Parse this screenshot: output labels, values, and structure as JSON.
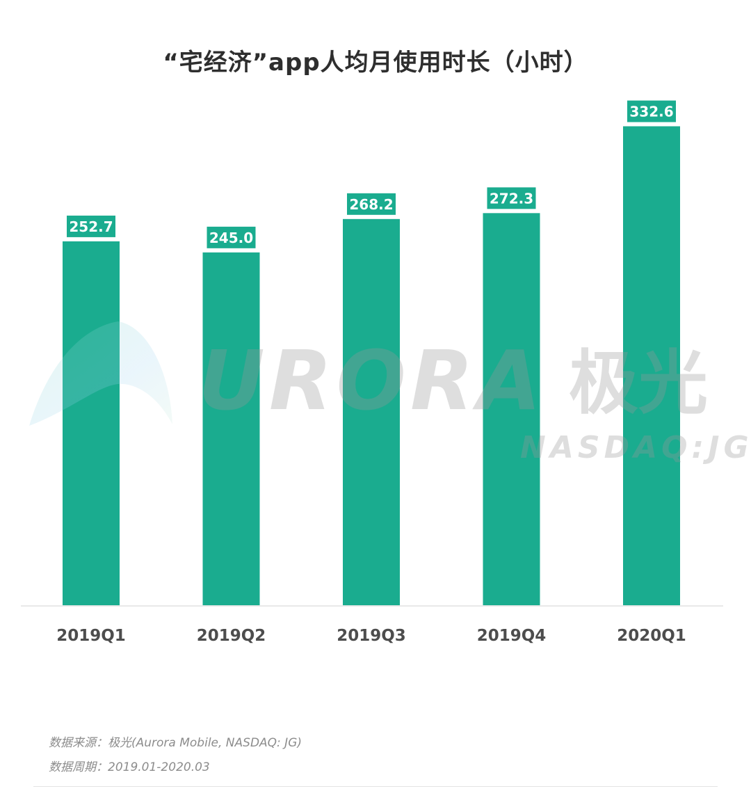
{
  "chart_data": {
    "type": "bar",
    "title": "“宅经济”app人均月使用时长（小时）",
    "categories": [
      "2019Q1",
      "2019Q2",
      "2019Q3",
      "2019Q4",
      "2020Q1"
    ],
    "values": [
      252.7,
      245.0,
      268.2,
      272.3,
      332.6
    ],
    "value_labels": [
      "252.7",
      "245.0",
      "268.2",
      "272.3",
      "332.6"
    ],
    "xlabel": "",
    "ylabel": "",
    "ylim": [
      0,
      350
    ],
    "grid": false,
    "legend": "none",
    "bar_color": "#1aac8f",
    "label_color": "#ffffff"
  },
  "watermark": {
    "logo_text": "URORA",
    "logo_cn": "极光",
    "ticker": "NASDAQ:JG",
    "color": "#999999"
  },
  "footer": {
    "source": "数据来源：极光(Aurora Mobile, NASDAQ: JG)",
    "period": "数据周期：2019.01-2020.03"
  }
}
